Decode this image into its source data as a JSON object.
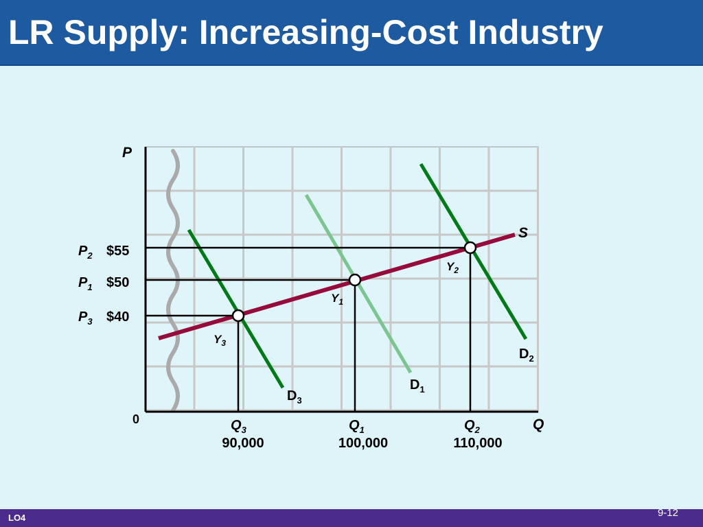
{
  "slide": {
    "title": "LR Supply: Increasing-Cost Industry",
    "lo_tag": "LO4",
    "slide_number": "9-12"
  },
  "colors": {
    "title_bar": "#1e5aa0",
    "background": "#def4f8",
    "footer_bar": "#4b2c8c",
    "supply_curve": "#960a3c",
    "demand_curve": "#007a16",
    "demand_curve_original": "#7cc490",
    "wavy_axis_break": "#aaaaaa",
    "grid": "#c8c8c8"
  },
  "diagram": {
    "axis_y_label": "P",
    "axis_x_label": "Q",
    "origin_label": "0",
    "price_levels": [
      {
        "sym": "P",
        "sub": "2",
        "value": "$55"
      },
      {
        "sym": "P",
        "sub": "1",
        "value": "$50"
      },
      {
        "sym": "P",
        "sub": "3",
        "value": "$40"
      }
    ],
    "quantity_levels": [
      {
        "sym": "Q",
        "sub": "3",
        "value": "90,000"
      },
      {
        "sym": "Q",
        "sub": "1",
        "value": "100,000"
      },
      {
        "sym": "Q",
        "sub": "2",
        "value": "110,000"
      }
    ],
    "supply_label": "S",
    "demand_labels": [
      {
        "sym": "D",
        "sub": "3"
      },
      {
        "sym": "D",
        "sub": "1"
      },
      {
        "sym": "D",
        "sub": "2"
      }
    ],
    "equilibrium_labels": [
      {
        "sym": "Y",
        "sub": "3"
      },
      {
        "sym": "Y",
        "sub": "1"
      },
      {
        "sym": "Y",
        "sub": "2"
      }
    ]
  }
}
